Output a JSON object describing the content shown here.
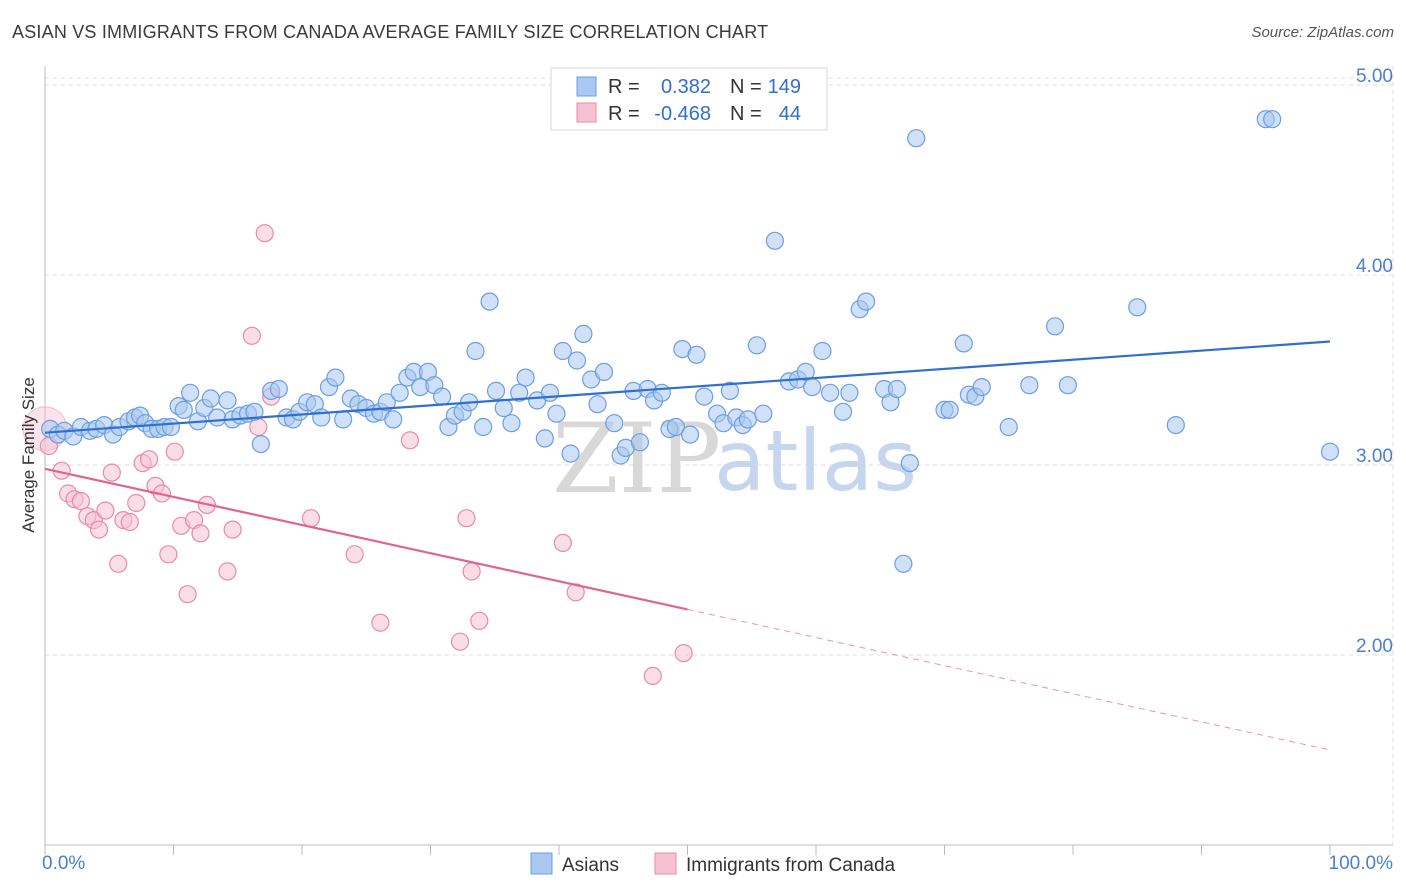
{
  "title": "ASIAN VS IMMIGRANTS FROM CANADA AVERAGE FAMILY SIZE CORRELATION CHART",
  "source": "Source: ZipAtlas.com",
  "watermark": {
    "zip": "ZIP",
    "atlas": "atlas"
  },
  "chart_data": {
    "type": "scatter",
    "ylabel": "Average Family Size",
    "xlim": [
      0,
      100
    ],
    "ylim": [
      1.0,
      5.1
    ],
    "x_tick_labels": {
      "left": "0.0%",
      "right": "100.0%"
    },
    "y_ticks": [
      {
        "value": 2.0,
        "label": "2.00"
      },
      {
        "value": 3.0,
        "label": "3.00"
      },
      {
        "value": 4.0,
        "label": "4.00"
      },
      {
        "value": 5.0,
        "label": "5.00"
      }
    ],
    "grid": true,
    "legend": {
      "placement": "top-center",
      "entries": [
        {
          "r_label": "R =",
          "r": "0.382",
          "n_label": "N =",
          "n": "149"
        },
        {
          "r_label": "R =",
          "r": "-0.468",
          "n_label": "N =",
          "n": "44"
        }
      ]
    },
    "series": [
      {
        "name": "Asians",
        "color": "#6b9ee3",
        "fill": "#aac8f0",
        "trend": {
          "x": [
            0,
            100
          ],
          "y": [
            3.17,
            3.65
          ],
          "color": "#2f6fd0"
        },
        "points": [
          [
            0.4,
            3.19
          ],
          [
            1,
            3.16
          ],
          [
            1.5,
            3.18
          ],
          [
            2.2,
            3.15
          ],
          [
            2.8,
            3.2
          ],
          [
            3.5,
            3.18
          ],
          [
            4,
            3.19
          ],
          [
            4.6,
            3.21
          ],
          [
            5.3,
            3.16
          ],
          [
            5.8,
            3.2
          ],
          [
            6.5,
            3.23
          ],
          [
            7,
            3.25
          ],
          [
            7.4,
            3.26
          ],
          [
            7.8,
            3.22
          ],
          [
            8.3,
            3.19
          ],
          [
            8.8,
            3.19
          ],
          [
            9.3,
            3.2
          ],
          [
            9.8,
            3.2
          ],
          [
            10.4,
            3.31
          ],
          [
            10.8,
            3.29
          ],
          [
            11.3,
            3.38
          ],
          [
            11.9,
            3.23
          ],
          [
            12.4,
            3.3
          ],
          [
            12.9,
            3.35
          ],
          [
            13.4,
            3.25
          ],
          [
            14.2,
            3.34
          ],
          [
            14.6,
            3.24
          ],
          [
            15.2,
            3.26
          ],
          [
            15.8,
            3.27
          ],
          [
            16.3,
            3.28
          ],
          [
            16.8,
            3.11
          ],
          [
            17.6,
            3.39
          ],
          [
            18.2,
            3.4
          ],
          [
            18.8,
            3.25
          ],
          [
            19.3,
            3.24
          ],
          [
            19.8,
            3.28
          ],
          [
            20.4,
            3.33
          ],
          [
            21,
            3.32
          ],
          [
            21.5,
            3.25
          ],
          [
            22.1,
            3.41
          ],
          [
            22.6,
            3.46
          ],
          [
            23.2,
            3.24
          ],
          [
            23.8,
            3.35
          ],
          [
            24.4,
            3.32
          ],
          [
            25,
            3.3
          ],
          [
            25.6,
            3.27
          ],
          [
            26.1,
            3.28
          ],
          [
            26.6,
            3.33
          ],
          [
            27.1,
            3.24
          ],
          [
            27.6,
            3.38
          ],
          [
            28.2,
            3.46
          ],
          [
            28.7,
            3.49
          ],
          [
            29.2,
            3.41
          ],
          [
            29.8,
            3.49
          ],
          [
            30.3,
            3.42
          ],
          [
            30.9,
            3.36
          ],
          [
            31.4,
            3.2
          ],
          [
            31.9,
            3.26
          ],
          [
            32.5,
            3.28
          ],
          [
            33,
            3.33
          ],
          [
            33.5,
            3.6
          ],
          [
            34.1,
            3.2
          ],
          [
            34.6,
            3.86
          ],
          [
            35.1,
            3.39
          ],
          [
            35.7,
            3.3
          ],
          [
            36.3,
            3.22
          ],
          [
            36.9,
            3.38
          ],
          [
            37.4,
            3.46
          ],
          [
            38.3,
            3.34
          ],
          [
            38.9,
            3.14
          ],
          [
            39.3,
            3.38
          ],
          [
            39.8,
            3.27
          ],
          [
            40.3,
            3.6
          ],
          [
            40.9,
            3.06
          ],
          [
            41.4,
            3.55
          ],
          [
            41.9,
            3.69
          ],
          [
            42.5,
            3.45
          ],
          [
            43,
            3.32
          ],
          [
            43.5,
            3.49
          ],
          [
            44.3,
            3.22
          ],
          [
            44.8,
            3.05
          ],
          [
            45.2,
            3.09
          ],
          [
            45.8,
            3.39
          ],
          [
            46.3,
            3.12
          ],
          [
            46.9,
            3.4
          ],
          [
            47.4,
            3.34
          ],
          [
            48,
            3.38
          ],
          [
            48.6,
            3.19
          ],
          [
            49.1,
            3.2
          ],
          [
            49.6,
            3.61
          ],
          [
            50.2,
            3.16
          ],
          [
            50.7,
            3.58
          ],
          [
            51.3,
            3.36
          ],
          [
            52.3,
            3.27
          ],
          [
            52.8,
            3.22
          ],
          [
            53.3,
            3.39
          ],
          [
            53.8,
            3.25
          ],
          [
            54.3,
            3.21
          ],
          [
            54.7,
            3.24
          ],
          [
            55.4,
            3.63
          ],
          [
            55.9,
            3.27
          ],
          [
            56.8,
            4.18
          ],
          [
            57.9,
            3.44
          ],
          [
            58.6,
            3.45
          ],
          [
            59.2,
            3.49
          ],
          [
            59.7,
            3.41
          ],
          [
            60.5,
            3.6
          ],
          [
            61.1,
            3.38
          ],
          [
            62.1,
            3.28
          ],
          [
            62.6,
            3.38
          ],
          [
            63.4,
            3.82
          ],
          [
            63.9,
            3.86
          ],
          [
            65.3,
            3.4
          ],
          [
            65.8,
            3.33
          ],
          [
            66.3,
            3.4
          ],
          [
            66.8,
            2.48
          ],
          [
            67.3,
            3.01
          ],
          [
            67.8,
            4.72
          ],
          [
            70,
            3.29
          ],
          [
            70.4,
            3.29
          ],
          [
            71.5,
            3.64
          ],
          [
            71.9,
            3.37
          ],
          [
            72.4,
            3.36
          ],
          [
            72.9,
            3.41
          ],
          [
            75,
            3.2
          ],
          [
            76.6,
            3.42
          ],
          [
            78.6,
            3.73
          ],
          [
            79.6,
            3.42
          ],
          [
            85,
            3.83
          ],
          [
            88,
            3.21
          ],
          [
            95,
            4.82
          ],
          [
            95.5,
            4.82
          ],
          [
            100,
            3.07
          ]
        ]
      },
      {
        "name": "Immigrants from Canada",
        "color": "#e98aaa",
        "fill": "#f6c2d2",
        "trend": {
          "x": [
            0,
            50
          ],
          "y": [
            2.98,
            2.24
          ],
          "color": "#e0648f"
        },
        "trend_dashed": {
          "x": [
            50,
            100
          ],
          "y": [
            2.24,
            1.5
          ]
        },
        "points": [
          [
            0.3,
            3.1
          ],
          [
            1.3,
            2.97
          ],
          [
            1.8,
            2.85
          ],
          [
            2.3,
            2.82
          ],
          [
            2.8,
            2.81
          ],
          [
            3.3,
            2.73
          ],
          [
            3.8,
            2.71
          ],
          [
            4.2,
            2.66
          ],
          [
            4.7,
            2.76
          ],
          [
            5.2,
            2.96
          ],
          [
            5.7,
            2.48
          ],
          [
            6.1,
            2.71
          ],
          [
            6.6,
            2.7
          ],
          [
            7.1,
            2.8
          ],
          [
            7.6,
            3.01
          ],
          [
            8.1,
            3.03
          ],
          [
            8.6,
            2.89
          ],
          [
            9.1,
            2.85
          ],
          [
            9.6,
            2.53
          ],
          [
            10.1,
            3.07
          ],
          [
            10.6,
            2.68
          ],
          [
            11.1,
            2.32
          ],
          [
            11.6,
            2.71
          ],
          [
            12.1,
            2.64
          ],
          [
            12.6,
            2.79
          ],
          [
            14.2,
            2.44
          ],
          [
            14.6,
            2.66
          ],
          [
            16.6,
            3.2
          ],
          [
            17.1,
            4.22
          ],
          [
            17.6,
            3.36
          ],
          [
            16.1,
            3.68
          ],
          [
            20.7,
            2.72
          ],
          [
            24.1,
            2.53
          ],
          [
            26.1,
            2.17
          ],
          [
            28.4,
            3.13
          ],
          [
            32.3,
            2.07
          ],
          [
            32.8,
            2.72
          ],
          [
            33.2,
            2.44
          ],
          [
            33.8,
            2.18
          ],
          [
            40.3,
            2.59
          ],
          [
            41.3,
            2.33
          ],
          [
            47.3,
            1.89
          ],
          [
            49.7,
            2.01
          ]
        ]
      }
    ]
  },
  "bottom_legend": [
    {
      "label": "Asians",
      "color": "#aac8f0",
      "border": "#6b9ee3"
    },
    {
      "label": "Immigrants from Canada",
      "color": "#f6c2d2",
      "border": "#e98aaa"
    }
  ]
}
